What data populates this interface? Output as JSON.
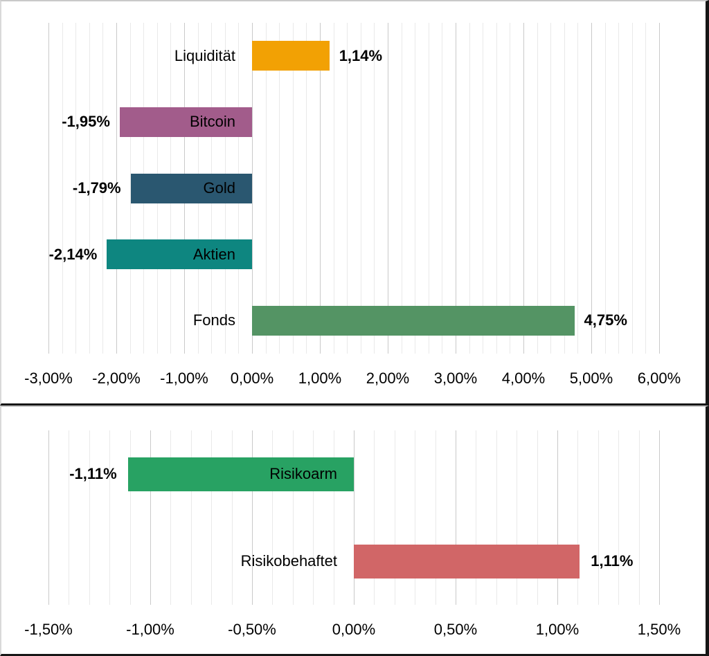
{
  "page": {
    "background": "#ffffff",
    "description_labels": {
      "top_chart_name": "asset-class-returns",
      "bottom_chart_name": "risk-bucket-returns"
    }
  },
  "colors": {
    "grid_minor": "#e9e9e9",
    "grid_major": "#c9c9c9",
    "text": "#000000",
    "frame_black": "#161616",
    "frame_gray": "#c9c9c9"
  },
  "chart_data": [
    {
      "type": "bar",
      "orientation": "horizontal",
      "panel_id": "panel-assets",
      "title": "",
      "xlabel": "",
      "ylabel": "",
      "categories": [
        "Liquidität",
        "Bitcoin",
        "Gold",
        "Aktien",
        "Fonds"
      ],
      "values": [
        1.14,
        -1.95,
        -1.79,
        -2.14,
        4.75
      ],
      "value_labels": [
        "1,14%",
        "-1,95%",
        "-1,79%",
        "-2,14%",
        "4,75%"
      ],
      "bar_colors": [
        "#F2A104",
        "#A25C8B",
        "#2A5770",
        "#0E8680",
        "#549464"
      ],
      "xlim": [
        -3.0,
        6.0
      ],
      "major_unit": 1.0,
      "minor_unit": 0.2,
      "tick_labels": [
        "-3,00%",
        "-2,00%",
        "-1,00%",
        "0,00%",
        "1,00%",
        "2,00%",
        "3,00%",
        "4,00%",
        "5,00%",
        "6,00%"
      ],
      "grid": true,
      "legend": "none"
    },
    {
      "type": "bar",
      "orientation": "horizontal",
      "panel_id": "panel-risk",
      "title": "",
      "xlabel": "",
      "ylabel": "",
      "categories": [
        "Risikoarm",
        "Risikobehaftet"
      ],
      "values": [
        -1.11,
        1.11
      ],
      "value_labels": [
        "-1,11%",
        "1,11%"
      ],
      "bar_colors": [
        "#28A263",
        "#D16667"
      ],
      "xlim": [
        -1.5,
        1.5
      ],
      "major_unit": 0.5,
      "minor_unit": 0.1,
      "tick_labels": [
        "-1,50%",
        "-1,00%",
        "-0,50%",
        "0,00%",
        "0,50%",
        "1,00%",
        "1,50%"
      ],
      "grid": true,
      "legend": "none"
    }
  ]
}
